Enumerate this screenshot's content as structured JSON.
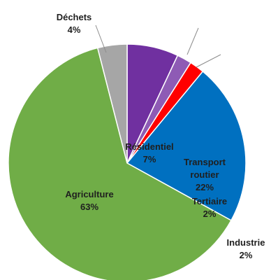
{
  "chart_data": {
    "type": "pie",
    "title": "",
    "start": "12 o'clock",
    "direction": "clockwise",
    "slices": [
      {
        "label": "Résidentiel",
        "value": 7,
        "value_label": "7%",
        "color": "#7030A0",
        "label_color": "#1f1f1f"
      },
      {
        "label": "Tertiaire",
        "value": 2,
        "value_label": "2%",
        "color": "#8E5BB5",
        "label_color": "#1f1f1f"
      },
      {
        "label": "Industrie",
        "value": 2,
        "value_label": "2%",
        "color": "#FF0000",
        "label_color": "#1f1f1f"
      },
      {
        "label": "Transport routier",
        "value": 22,
        "value_label": "22%",
        "color": "#0070C0",
        "label_color": "#1f1f1f"
      },
      {
        "label": "Agriculture",
        "value": 63,
        "value_label": "63%",
        "color": "#70AD47",
        "label_color": "#1f1f1f"
      },
      {
        "label": "Déchets",
        "value": 4,
        "value_label": "4%",
        "color": "#A6A6A6",
        "label_color": "#1f1f1f"
      }
    ]
  }
}
